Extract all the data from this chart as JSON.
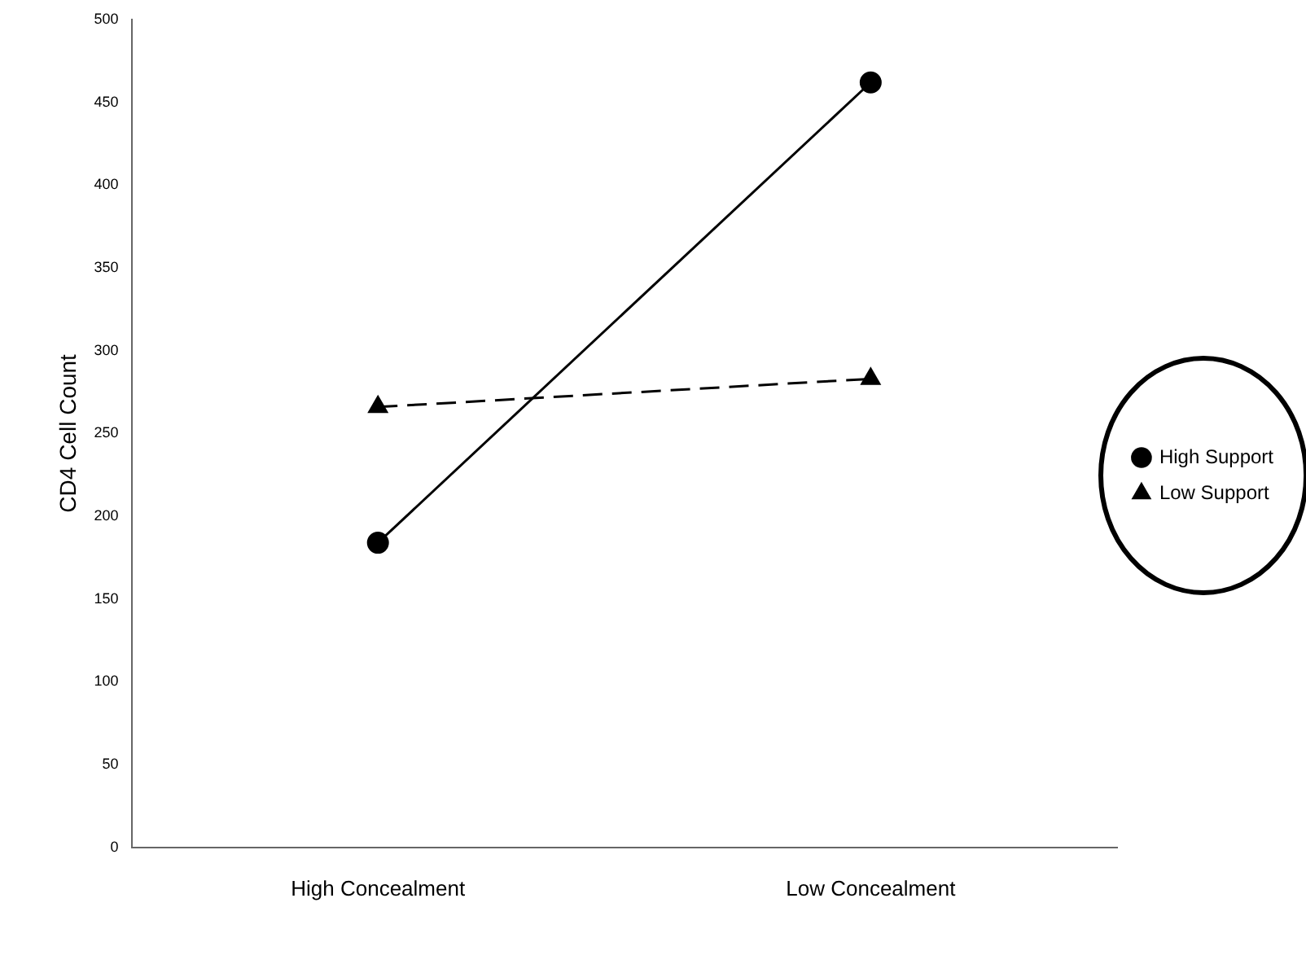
{
  "chart_data": {
    "type": "line",
    "ylabel": "CD4 Cell Count",
    "categories": [
      "High Concealment",
      "Low Concealment"
    ],
    "series": [
      {
        "name": "High Support",
        "color": "#000000",
        "values": [
          184,
          462
        ],
        "marker": "circle",
        "line_style": "solid"
      },
      {
        "name": "Low Support",
        "color": "#000000",
        "values": [
          266,
          283
        ],
        "marker": "triangle",
        "line_style": "dashed"
      }
    ],
    "ylim": [
      0,
      500
    ],
    "yticks": [
      0,
      50,
      100,
      150,
      200,
      250,
      300,
      350,
      400,
      450,
      500
    ],
    "grid": false,
    "legend": "right"
  }
}
